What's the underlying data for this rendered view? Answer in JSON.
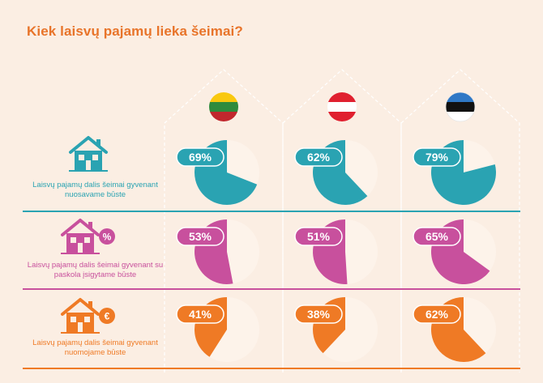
{
  "title": "Kiek laisvų pajamų lieka šeimai?",
  "colors": {
    "background": "#fbeee3",
    "teal": "#2aa3b2",
    "magenta": "#c8509d",
    "orange": "#ef7a25",
    "pie_rest": "#fdf3ea",
    "house_outline": "#ffffff"
  },
  "flags": [
    {
      "name": "lithuania-flag-icon",
      "stripes": [
        "#f9c80e",
        "#2e8b3d",
        "#c1272d"
      ]
    },
    {
      "name": "austria-flag-icon",
      "stripes": [
        "#e0202f",
        "#ffffff",
        "#e0202f"
      ]
    },
    {
      "name": "estonia-flag-icon",
      "stripes": [
        "#2f78c6",
        "#111111",
        "#ffffff"
      ]
    }
  ],
  "rows": [
    {
      "label": "Laisvų pajamų dalis šeimai gyvenant nuosavame būste",
      "icon": "house-icon",
      "badge": "",
      "color": "#2aa3b2"
    },
    {
      "label": "Laisvų pajamų dalis šeimai gyvenant su paskola įsigytame būste",
      "icon": "house-percent-icon",
      "badge": "%",
      "color": "#c8509d"
    },
    {
      "label": "Laisvų pajamų dalis šeimai gyvenant nuomojame būste",
      "icon": "house-euro-icon",
      "badge": "€",
      "color": "#ef7a25"
    }
  ],
  "chart_data": {
    "type": "pie",
    "title": "Kiek laisvų pajamų lieka šeimai?",
    "columns": [
      "lithuania-flag-icon",
      "austria-flag-icon",
      "estonia-flag-icon"
    ],
    "rows": [
      "Laisvų pajamų dalis šeimai gyvenant nuosavame būste",
      "Laisvų pajamų dalis šeimai gyvenant su paskola įsigytame būste",
      "Laisvų pajamų dalis šeimai gyvenant nuomojame būste"
    ],
    "values": [
      [
        69,
        62,
        79
      ],
      [
        53,
        51,
        65
      ],
      [
        41,
        38,
        62
      ]
    ],
    "labels": [
      [
        "69%",
        "62%",
        "79%"
      ],
      [
        "53%",
        "51%",
        "65%"
      ],
      [
        "41%",
        "38%",
        "62%"
      ]
    ]
  }
}
